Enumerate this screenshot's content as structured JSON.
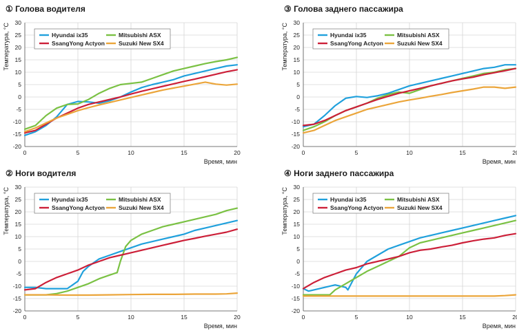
{
  "chart_data": [
    {
      "type": "line",
      "number": "①",
      "title": "Голова водителя",
      "xlabel": "Время, мин",
      "ylabel": "Температура, °C",
      "xlim": [
        0,
        20
      ],
      "ylim": [
        -20,
        30
      ],
      "xticks": [
        0,
        5,
        10,
        15,
        20
      ],
      "yticks": [
        -20,
        -15,
        -10,
        -5,
        0,
        5,
        10,
        15,
        20,
        25,
        30
      ],
      "grid": true,
      "legend_position": "top-left",
      "series": [
        {
          "name": "Hyundai ix35",
          "color": "#1fa0dc",
          "x": [
            0,
            1,
            2,
            3,
            4,
            5,
            6,
            7,
            8,
            9,
            10,
            11,
            12,
            13,
            14,
            15,
            16,
            17,
            18,
            19,
            20
          ],
          "y": [
            -15.5,
            -14,
            -11.5,
            -8,
            -3,
            -1.8,
            -2,
            -2.5,
            -1.5,
            0,
            2,
            3.8,
            5,
            6,
            7,
            8.5,
            9.5,
            10.5,
            11.5,
            12.5,
            13
          ]
        },
        {
          "name": "Mitsubishi ASX",
          "color": "#7ac143",
          "x": [
            0,
            1,
            2,
            3,
            4,
            5,
            6,
            7,
            8,
            9,
            10,
            11,
            12,
            13,
            14,
            15,
            16,
            17,
            18,
            19,
            20
          ],
          "y": [
            -13,
            -11.5,
            -7.5,
            -4.5,
            -3,
            -2.8,
            -1,
            1.5,
            3.5,
            5,
            5.5,
            6,
            7.5,
            9,
            10.5,
            11.5,
            12.5,
            13.5,
            14.3,
            15,
            16
          ]
        },
        {
          "name": "SsangYong Actyon",
          "color": "#cc1f38",
          "x": [
            0,
            1,
            2,
            3,
            4,
            5,
            6,
            7,
            8,
            9,
            10,
            11,
            12,
            13,
            14,
            15,
            16,
            17,
            18,
            19,
            20
          ],
          "y": [
            -14.5,
            -13.5,
            -11,
            -8.5,
            -6.5,
            -4.5,
            -3,
            -2,
            -1,
            0,
            1.2,
            2.3,
            3.3,
            4.3,
            5.3,
            6.3,
            7.2,
            8.2,
            9.2,
            10.2,
            11
          ]
        },
        {
          "name": "Suzuki New SX4",
          "color": "#eba53a",
          "x": [
            0,
            1,
            2,
            3,
            4,
            5,
            6,
            7,
            8,
            9,
            10,
            11,
            12,
            13,
            14,
            15,
            16,
            17,
            18,
            19,
            20
          ],
          "y": [
            -14,
            -12.5,
            -10.5,
            -8.5,
            -7,
            -5.5,
            -4.3,
            -3.2,
            -2.2,
            -1.2,
            -0.2,
            0.8,
            1.8,
            2.8,
            3.6,
            4.4,
            5.2,
            6,
            5.2,
            4.8,
            5.2
          ]
        }
      ]
    },
    {
      "type": "line",
      "number": "③",
      "title": "Голова заднего пассажира",
      "xlabel": "Время, мин",
      "ylabel": "Температура, °C",
      "xlim": [
        0,
        20
      ],
      "ylim": [
        -20,
        30
      ],
      "xticks": [
        0,
        5,
        10,
        15,
        20
      ],
      "yticks": [
        -20,
        -15,
        -10,
        -5,
        0,
        5,
        10,
        15,
        20,
        25,
        30
      ],
      "grid": true,
      "legend_position": "top-left",
      "series": [
        {
          "name": "Hyundai ix35",
          "color": "#1fa0dc",
          "x": [
            0,
            1,
            2,
            3,
            4,
            5,
            6,
            7,
            8,
            9,
            10,
            11,
            12,
            13,
            14,
            15,
            16,
            17,
            18,
            19,
            20
          ],
          "y": [
            -12,
            -11,
            -7.5,
            -3.5,
            -0.5,
            0.2,
            -0.2,
            0.5,
            1.5,
            3,
            4.5,
            5.5,
            6.5,
            7.5,
            8.5,
            9.5,
            10.5,
            11.5,
            12,
            13,
            13
          ]
        },
        {
          "name": "Mitsubishi ASX",
          "color": "#7ac143",
          "x": [
            0,
            1,
            2,
            3,
            4,
            5,
            6,
            7,
            8,
            9,
            10,
            11,
            12,
            13,
            14,
            15,
            16,
            17,
            18,
            19,
            20
          ],
          "y": [
            -13.5,
            -12,
            -10,
            -7.5,
            -5.5,
            -4,
            -2.5,
            -0.5,
            1,
            2,
            1.5,
            3,
            4.5,
            5.5,
            6.5,
            7.5,
            8.5,
            9.5,
            10,
            11,
            11.5
          ]
        },
        {
          "name": "SsangYong Actyon",
          "color": "#cc1f38",
          "x": [
            0,
            1,
            2,
            3,
            4,
            5,
            6,
            7,
            8,
            9,
            10,
            11,
            12,
            13,
            14,
            15,
            16,
            17,
            18,
            19,
            20
          ],
          "y": [
            -11.5,
            -11,
            -9.5,
            -7.5,
            -5.5,
            -4,
            -2.5,
            -1,
            0.3,
            1.5,
            2.5,
            3.5,
            4.5,
            5.5,
            6.5,
            7.3,
            8,
            9,
            9.8,
            10.6,
            11.5
          ]
        },
        {
          "name": "Suzuki New SX4",
          "color": "#eba53a",
          "x": [
            0,
            1,
            2,
            3,
            4,
            5,
            6,
            7,
            8,
            9,
            10,
            11,
            12,
            13,
            14,
            15,
            16,
            17,
            18,
            19,
            20
          ],
          "y": [
            -14.5,
            -13.5,
            -11.5,
            -9.5,
            -8,
            -6.5,
            -5,
            -4,
            -3,
            -2,
            -1.2,
            -0.5,
            0.3,
            1,
            1.8,
            2.5,
            3.2,
            4,
            4,
            3.5,
            4
          ]
        }
      ]
    },
    {
      "type": "line",
      "number": "②",
      "title": "Ноги водителя",
      "xlabel": "Время, мин",
      "ylabel": "Температура, °C",
      "xlim": [
        0,
        20
      ],
      "ylim": [
        -20,
        30
      ],
      "xticks": [
        0,
        5,
        10,
        15,
        20
      ],
      "yticks": [
        -20,
        -15,
        -10,
        -5,
        0,
        5,
        10,
        15,
        20,
        25,
        30
      ],
      "grid": true,
      "legend_position": "top-left",
      "series": [
        {
          "name": "Hyundai ix35",
          "color": "#1fa0dc",
          "x": [
            0,
            1,
            2,
            3,
            4,
            5,
            5.5,
            6,
            7,
            8,
            9,
            10,
            11,
            12,
            13,
            14,
            15,
            16,
            17,
            18,
            19,
            20
          ],
          "y": [
            -10.5,
            -10.5,
            -11,
            -11,
            -11,
            -8,
            -4,
            -2,
            1,
            2.5,
            4,
            5.5,
            7,
            8,
            9,
            10,
            11,
            12.5,
            13.5,
            14.5,
            15.5,
            16.5
          ]
        },
        {
          "name": "Mitsubishi ASX",
          "color": "#7ac143",
          "x": [
            0,
            1,
            2,
            3,
            4,
            5,
            6,
            7,
            8,
            8.7,
            9,
            9.5,
            10,
            11,
            12,
            13,
            14,
            15,
            16,
            17,
            18,
            19,
            20
          ],
          "y": [
            -13.5,
            -13.5,
            -13.5,
            -13,
            -12,
            -10.5,
            -9,
            -7,
            -5.5,
            -4.5,
            0,
            6,
            8.5,
            11,
            12.5,
            14,
            15,
            16,
            17,
            18,
            19,
            20.5,
            21.5
          ]
        },
        {
          "name": "SsangYong Actyon",
          "color": "#cc1f38",
          "x": [
            0,
            1,
            2,
            3,
            4,
            5,
            6,
            7,
            8,
            9,
            10,
            11,
            12,
            13,
            14,
            15,
            16,
            17,
            18,
            19,
            20
          ],
          "y": [
            -11.5,
            -11,
            -8.5,
            -6.5,
            -5,
            -3.5,
            -1.5,
            0,
            1.5,
            2.5,
            3.5,
            4.5,
            5.5,
            6.5,
            7.5,
            8.5,
            9.3,
            10.2,
            11,
            11.8,
            13
          ]
        },
        {
          "name": "Suzuki New SX4",
          "color": "#eba53a",
          "x": [
            0,
            2,
            4,
            6,
            8,
            10,
            12,
            14,
            16,
            18,
            19,
            20
          ],
          "y": [
            -13.5,
            -13.5,
            -13.6,
            -13.6,
            -13.5,
            -13.4,
            -13.3,
            -13.3,
            -13.2,
            -13.2,
            -13.1,
            -12.8
          ]
        }
      ]
    },
    {
      "type": "line",
      "number": "④",
      "title": "Ноги заднего пассажира",
      "xlabel": "Время, мин",
      "ylabel": "Температура, °C",
      "xlim": [
        0,
        20
      ],
      "ylim": [
        -20,
        30
      ],
      "xticks": [
        0,
        5,
        10,
        15,
        20
      ],
      "yticks": [
        -20,
        -15,
        -10,
        -5,
        0,
        5,
        10,
        15,
        20,
        25,
        30
      ],
      "grid": true,
      "legend_position": "top-left",
      "series": [
        {
          "name": "Hyundai ix35",
          "color": "#1fa0dc",
          "x": [
            0,
            0.5,
            1,
            2,
            3,
            4,
            4.2,
            5,
            6,
            7,
            8,
            9,
            10,
            11,
            12,
            13,
            14,
            15,
            16,
            17,
            18,
            19,
            20
          ],
          "y": [
            -11,
            -12,
            -11.5,
            -10.5,
            -9.5,
            -10.5,
            -11.5,
            -5,
            0,
            2.5,
            5,
            6.5,
            8,
            9.5,
            10.5,
            11.5,
            12.5,
            13.5,
            14.5,
            15.5,
            16.5,
            17.5,
            18.5
          ]
        },
        {
          "name": "Mitsubishi ASX",
          "color": "#7ac143",
          "x": [
            0,
            1,
            2,
            2.5,
            3,
            4,
            5,
            6,
            7,
            8,
            9,
            10,
            11,
            12,
            13,
            14,
            15,
            16,
            17,
            18,
            19,
            20
          ],
          "y": [
            -13.5,
            -13.5,
            -13.5,
            -13.5,
            -11.5,
            -9,
            -6.5,
            -4,
            -2,
            0,
            2,
            5.5,
            7.5,
            8.5,
            9.5,
            10.5,
            11.5,
            12.5,
            13.5,
            14.5,
            15.5,
            16.5
          ]
        },
        {
          "name": "SsangYong Actyon",
          "color": "#cc1f38",
          "x": [
            0,
            1,
            2,
            3,
            4,
            5,
            6,
            7,
            8,
            9,
            10,
            11,
            12,
            13,
            14,
            15,
            16,
            17,
            18,
            19,
            20
          ],
          "y": [
            -11,
            -8.5,
            -6.5,
            -5,
            -3.5,
            -2.5,
            -1,
            0,
            1,
            2,
            3.5,
            4.5,
            5,
            5.8,
            6.5,
            7.5,
            8.3,
            9,
            9.5,
            10.5,
            11.2
          ]
        },
        {
          "name": "Suzuki New SX4",
          "color": "#eba53a",
          "x": [
            0,
            2,
            4,
            6,
            8,
            10,
            12,
            14,
            16,
            18,
            19,
            20
          ],
          "y": [
            -14,
            -14,
            -14,
            -14,
            -14,
            -14,
            -14,
            -14,
            -14,
            -14,
            -13.8,
            -13.5
          ]
        }
      ]
    }
  ]
}
